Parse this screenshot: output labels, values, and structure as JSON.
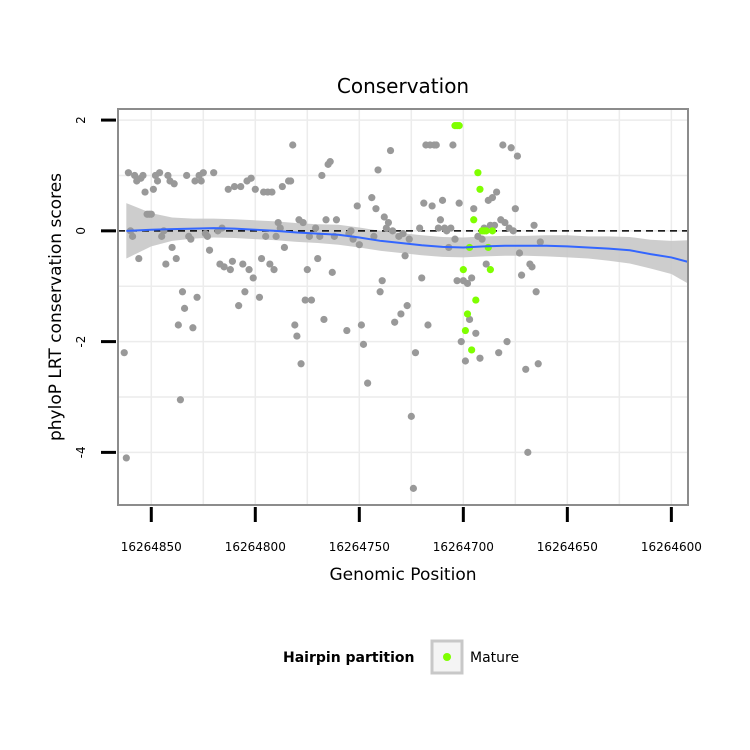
{
  "chart_data": {
    "type": "scatter",
    "title": "Conservation",
    "xlabel": "Genomic Position",
    "ylabel": "phyloP LRT conservation scores",
    "x_reversed": true,
    "xlim": [
      16264866,
      16264592
    ],
    "ylim": [
      -4.95,
      2.2
    ],
    "x_ticks": [
      16264850,
      16264800,
      16264750,
      16264700,
      16264650,
      16264600
    ],
    "y_ticks": [
      2,
      0,
      -2,
      -4
    ],
    "grid": true,
    "reference_line": {
      "y": 0,
      "style": "dashed",
      "color": "#000000"
    },
    "legend": {
      "title": "Hairpin partition",
      "entries": [
        "Mature"
      ],
      "position": "bottom"
    },
    "colors": {
      "background_points": "#999999",
      "mature_points": "#7fff00",
      "smooth_line": "#3366ff",
      "confidence_band": "#c8c8c8",
      "panel_border": "#8c8c8c",
      "grid": "#ececec"
    },
    "series": [
      {
        "group": "background",
        "points": [
          [
            16264863,
            -2.2
          ],
          [
            16264862,
            -4.1
          ],
          [
            16264861,
            1.05
          ],
          [
            16264860,
            0.0
          ],
          [
            16264859,
            -0.1
          ],
          [
            16264858,
            1.0
          ],
          [
            16264857,
            0.9
          ],
          [
            16264856,
            -0.5
          ],
          [
            16264855,
            0.95
          ],
          [
            16264854,
            1.0
          ],
          [
            16264853,
            0.7
          ],
          [
            16264852,
            0.3
          ],
          [
            16264851,
            0.3
          ],
          [
            16264850,
            0.3
          ],
          [
            16264849,
            0.75
          ],
          [
            16264848,
            1.0
          ],
          [
            16264847,
            0.9
          ],
          [
            16264846,
            1.05
          ],
          [
            16264845,
            -0.1
          ],
          [
            16264844,
            0.0
          ],
          [
            16264843,
            -0.6
          ],
          [
            16264842,
            1.0
          ],
          [
            16264841,
            0.9
          ],
          [
            16264840,
            -0.3
          ],
          [
            16264839,
            0.85
          ],
          [
            16264838,
            -0.5
          ],
          [
            16264837,
            -1.7
          ],
          [
            16264836,
            -3.05
          ],
          [
            16264835,
            -1.1
          ],
          [
            16264834,
            -1.4
          ],
          [
            16264833,
            1.0
          ],
          [
            16264832,
            -0.1
          ],
          [
            16264831,
            -0.15
          ],
          [
            16264830,
            -1.75
          ],
          [
            16264829,
            0.9
          ],
          [
            16264828,
            -1.2
          ],
          [
            16264827,
            1.0
          ],
          [
            16264826,
            0.9
          ],
          [
            16264825,
            1.05
          ],
          [
            16264824,
            -0.05
          ],
          [
            16264823,
            -0.1
          ],
          [
            16264822,
            -0.35
          ],
          [
            16264820,
            1.05
          ],
          [
            16264818,
            0.0
          ],
          [
            16264817,
            -0.6
          ],
          [
            16264816,
            0.05
          ],
          [
            16264815,
            -0.65
          ],
          [
            16264813,
            0.75
          ],
          [
            16264812,
            -0.7
          ],
          [
            16264811,
            -0.55
          ],
          [
            16264810,
            0.8
          ],
          [
            16264808,
            -1.35
          ],
          [
            16264807,
            0.8
          ],
          [
            16264806,
            -0.6
          ],
          [
            16264805,
            -1.1
          ],
          [
            16264804,
            0.9
          ],
          [
            16264803,
            -0.7
          ],
          [
            16264802,
            0.95
          ],
          [
            16264801,
            -0.85
          ],
          [
            16264800,
            0.75
          ],
          [
            16264798,
            -1.2
          ],
          [
            16264797,
            -0.5
          ],
          [
            16264796,
            0.7
          ],
          [
            16264795,
            -0.1
          ],
          [
            16264794,
            0.7
          ],
          [
            16264793,
            -0.6
          ],
          [
            16264792,
            0.7
          ],
          [
            16264791,
            -0.7
          ],
          [
            16264790,
            -0.1
          ],
          [
            16264789,
            0.15
          ],
          [
            16264788,
            0.05
          ],
          [
            16264787,
            0.8
          ],
          [
            16264786,
            -0.3
          ],
          [
            16264784,
            0.9
          ],
          [
            16264783,
            0.9
          ],
          [
            16264782,
            1.55
          ],
          [
            16264781,
            -1.7
          ],
          [
            16264780,
            -1.9
          ],
          [
            16264779,
            0.2
          ],
          [
            16264778,
            -2.4
          ],
          [
            16264777,
            0.15
          ],
          [
            16264776,
            -1.25
          ],
          [
            16264775,
            -0.7
          ],
          [
            16264774,
            -0.1
          ],
          [
            16264773,
            -1.25
          ],
          [
            16264771,
            0.05
          ],
          [
            16264770,
            -0.5
          ],
          [
            16264769,
            -0.1
          ],
          [
            16264768,
            1.0
          ],
          [
            16264767,
            -1.6
          ],
          [
            16264766,
            0.2
          ],
          [
            16264765,
            1.2
          ],
          [
            16264764,
            1.25
          ],
          [
            16264763,
            -0.75
          ],
          [
            16264762,
            -0.1
          ],
          [
            16264761,
            0.2
          ],
          [
            16264756,
            -1.8
          ],
          [
            16264755,
            -0.05
          ],
          [
            16264754,
            0.0
          ],
          [
            16264753,
            -0.15
          ],
          [
            16264751,
            0.45
          ],
          [
            16264750,
            -0.25
          ],
          [
            16264749,
            -1.7
          ],
          [
            16264748,
            -2.05
          ],
          [
            16264746,
            -2.75
          ],
          [
            16264744,
            0.6
          ],
          [
            16264743,
            -0.1
          ],
          [
            16264742,
            0.4
          ],
          [
            16264741,
            1.1
          ],
          [
            16264740,
            -1.1
          ],
          [
            16264739,
            -0.9
          ],
          [
            16264738,
            0.25
          ],
          [
            16264737,
            0.05
          ],
          [
            16264736,
            0.15
          ],
          [
            16264735,
            1.45
          ],
          [
            16264734,
            0.0
          ],
          [
            16264733,
            -1.65
          ],
          [
            16264731,
            -0.1
          ],
          [
            16264730,
            -1.5
          ],
          [
            16264729,
            -0.05
          ],
          [
            16264728,
            -0.45
          ],
          [
            16264727,
            -1.35
          ],
          [
            16264726,
            -0.15
          ],
          [
            16264725,
            -3.35
          ],
          [
            16264724,
            -4.65
          ],
          [
            16264723,
            -2.2
          ],
          [
            16264721,
            0.05
          ],
          [
            16264720,
            -0.85
          ],
          [
            16264719,
            0.5
          ],
          [
            16264718,
            1.55
          ],
          [
            16264717,
            -1.7
          ],
          [
            16264716,
            1.55
          ],
          [
            16264715,
            0.45
          ],
          [
            16264714,
            1.55
          ],
          [
            16264713,
            1.55
          ],
          [
            16264712,
            0.05
          ],
          [
            16264711,
            0.2
          ],
          [
            16264710,
            0.55
          ],
          [
            16264709,
            0.05
          ],
          [
            16264708,
            0.0
          ],
          [
            16264707,
            -0.3
          ],
          [
            16264706,
            0.05
          ],
          [
            16264705,
            1.55
          ],
          [
            16264704,
            -0.15
          ],
          [
            16264703,
            -0.9
          ],
          [
            16264702,
            0.5
          ],
          [
            16264701,
            -2.0
          ],
          [
            16264700,
            -0.9
          ],
          [
            16264699,
            -2.35
          ],
          [
            16264698,
            -0.95
          ],
          [
            16264697,
            -1.6
          ],
          [
            16264696,
            -0.85
          ],
          [
            16264695,
            0.4
          ],
          [
            16264694,
            -1.85
          ],
          [
            16264693,
            -0.1
          ],
          [
            16264692,
            -2.3
          ],
          [
            16264691,
            -0.15
          ],
          [
            16264690,
            0.05
          ],
          [
            16264689,
            -0.6
          ],
          [
            16264688,
            0.55
          ],
          [
            16264687,
            0.1
          ],
          [
            16264686,
            0.6
          ],
          [
            16264685,
            0.1
          ],
          [
            16264684,
            0.7
          ],
          [
            16264683,
            -2.2
          ],
          [
            16264682,
            0.2
          ],
          [
            16264681,
            1.55
          ],
          [
            16264680,
            0.15
          ],
          [
            16264679,
            -2.0
          ],
          [
            16264678,
            0.05
          ],
          [
            16264677,
            1.5
          ],
          [
            16264676,
            0.0
          ],
          [
            16264675,
            0.4
          ],
          [
            16264674,
            1.35
          ],
          [
            16264673,
            -0.4
          ],
          [
            16264672,
            -0.8
          ],
          [
            16264670,
            -2.5
          ],
          [
            16264669,
            -4.0
          ],
          [
            16264668,
            -0.6
          ],
          [
            16264667,
            -0.65
          ],
          [
            16264666,
            0.1
          ],
          [
            16264665,
            -1.1
          ],
          [
            16264664,
            -2.4
          ],
          [
            16264663,
            -0.2
          ]
        ]
      },
      {
        "group": "Mature",
        "points": [
          [
            16264704,
            1.9
          ],
          [
            16264703,
            1.9
          ],
          [
            16264702,
            1.9
          ],
          [
            16264700,
            -0.7
          ],
          [
            16264699,
            -1.8
          ],
          [
            16264698,
            -1.5
          ],
          [
            16264697,
            -0.3
          ],
          [
            16264696,
            -2.15
          ],
          [
            16264695,
            0.2
          ],
          [
            16264694,
            -1.25
          ],
          [
            16264693,
            1.05
          ],
          [
            16264692,
            0.75
          ],
          [
            16264691,
            0.0
          ],
          [
            16264690,
            0.0
          ],
          [
            16264689,
            0.0
          ],
          [
            16264688,
            -0.3
          ],
          [
            16264687,
            -0.7
          ],
          [
            16264686,
            0.0
          ]
        ]
      }
    ],
    "smooth": {
      "x": [
        16264862,
        16264850,
        16264840,
        16264830,
        16264820,
        16264810,
        16264800,
        16264790,
        16264780,
        16264770,
        16264760,
        16264750,
        16264740,
        16264730,
        16264720,
        16264710,
        16264700,
        16264690,
        16264680,
        16264670,
        16264660,
        16264650,
        16264640,
        16264630,
        16264620,
        16264610,
        16264600,
        16264590
      ],
      "y": [
        0.0,
        0.02,
        0.03,
        0.04,
        0.05,
        0.04,
        0.02,
        0.0,
        -0.03,
        -0.05,
        -0.07,
        -0.12,
        -0.18,
        -0.22,
        -0.26,
        -0.29,
        -0.3,
        -0.28,
        -0.27,
        -0.27,
        -0.27,
        -0.28,
        -0.3,
        -0.32,
        -0.35,
        -0.42,
        -0.48,
        -0.56
      ],
      "lower": [
        -0.5,
        -0.28,
        -0.18,
        -0.14,
        -0.12,
        -0.13,
        -0.15,
        -0.17,
        -0.2,
        -0.22,
        -0.25,
        -0.3,
        -0.36,
        -0.4,
        -0.44,
        -0.47,
        -0.48,
        -0.46,
        -0.45,
        -0.45,
        -0.46,
        -0.48,
        -0.5,
        -0.54,
        -0.59,
        -0.68,
        -0.78,
        -0.95
      ],
      "upper": [
        0.5,
        0.32,
        0.24,
        0.22,
        0.22,
        0.21,
        0.19,
        0.17,
        0.14,
        0.12,
        0.11,
        0.06,
        0.0,
        -0.04,
        -0.08,
        -0.11,
        -0.12,
        -0.1,
        -0.09,
        -0.09,
        -0.08,
        -0.08,
        -0.1,
        -0.1,
        -0.11,
        -0.16,
        -0.18,
        -0.17
      ]
    }
  }
}
